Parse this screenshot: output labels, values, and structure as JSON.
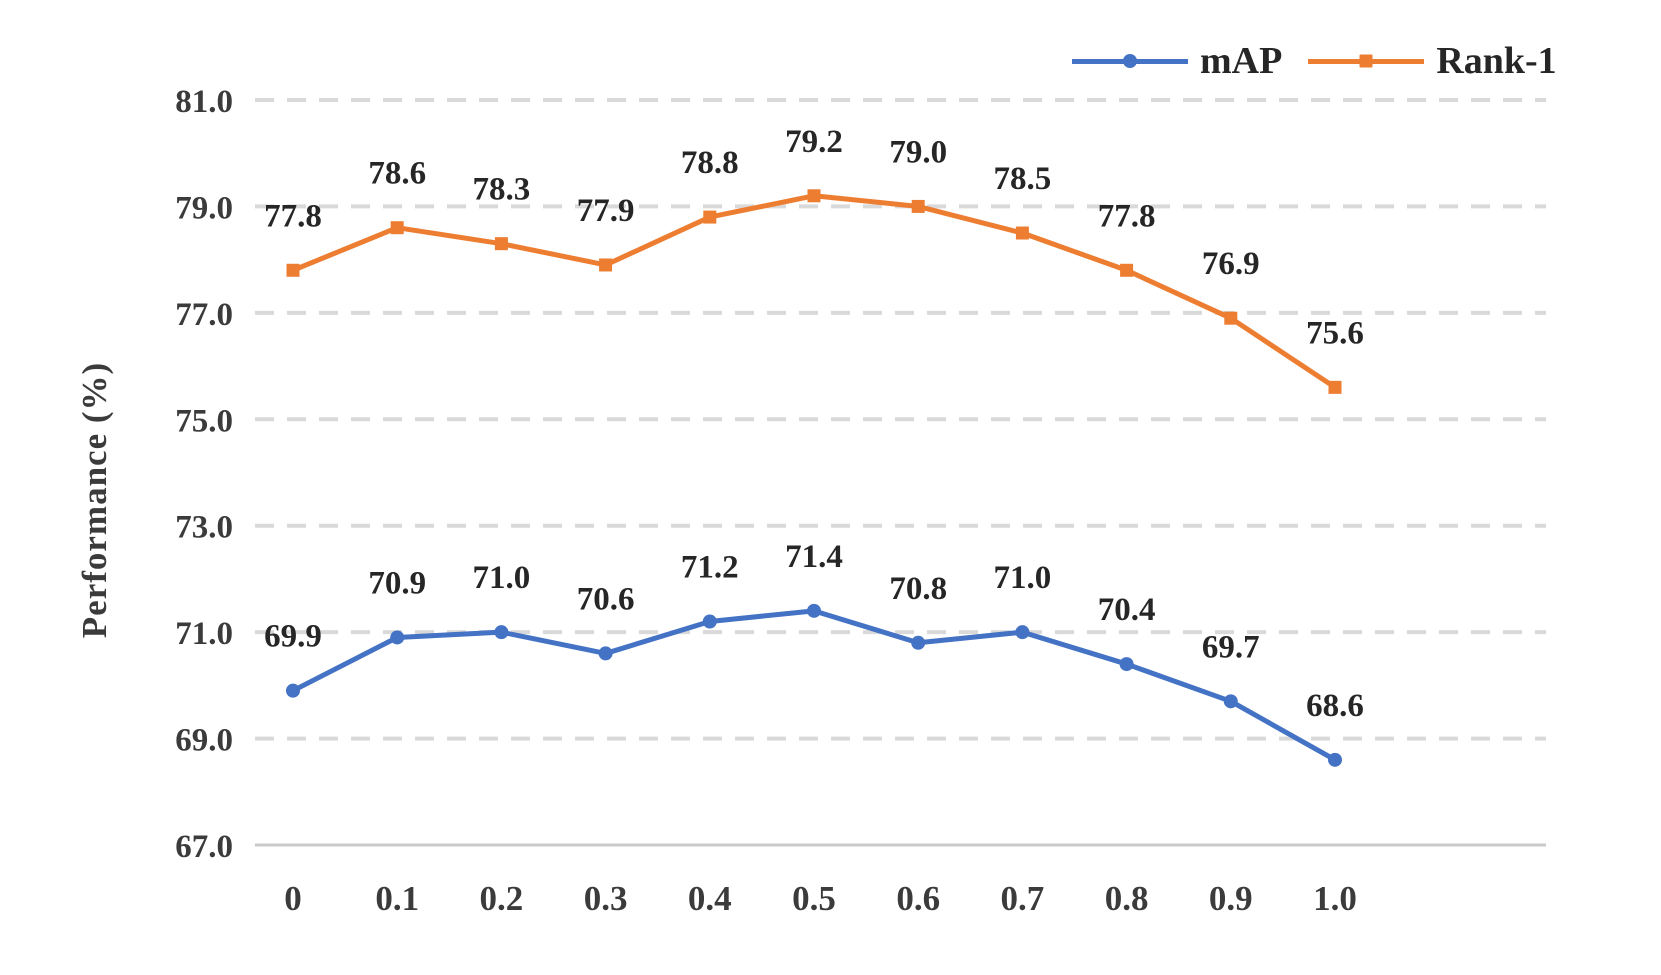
{
  "chart_data": {
    "type": "line",
    "x_categories": [
      "0",
      "0.1",
      "0.2",
      "0.3",
      "0.4",
      "0.5",
      "0.6",
      "0.7",
      "0.8",
      "0.9",
      "1.0"
    ],
    "series": [
      {
        "name": "mAP",
        "color": "#4472C4",
        "marker": "circle",
        "values": [
          69.9,
          70.9,
          71.0,
          70.6,
          71.2,
          71.4,
          70.8,
          71.0,
          70.4,
          69.7,
          68.6
        ]
      },
      {
        "name": "Rank-1",
        "color": "#ED7D31",
        "marker": "square",
        "values": [
          77.8,
          78.6,
          78.3,
          77.9,
          78.8,
          79.2,
          79.0,
          78.5,
          77.8,
          76.9,
          75.6
        ]
      }
    ],
    "title": "",
    "xlabel": "",
    "ylabel": "Performance (%)",
    "ylim": [
      67.0,
      81.0
    ],
    "yticks": [
      67.0,
      69.0,
      71.0,
      73.0,
      75.0,
      77.0,
      79.0,
      81.0
    ],
    "grid": "dashed-horizontal",
    "legend_position": "top-right",
    "data_labels": true,
    "colors": {
      "gridline": "#d9d9d9",
      "axis_line": "#c9c9c9",
      "tick_text": "#3b3b3b",
      "data_label_text": "#262626"
    }
  }
}
